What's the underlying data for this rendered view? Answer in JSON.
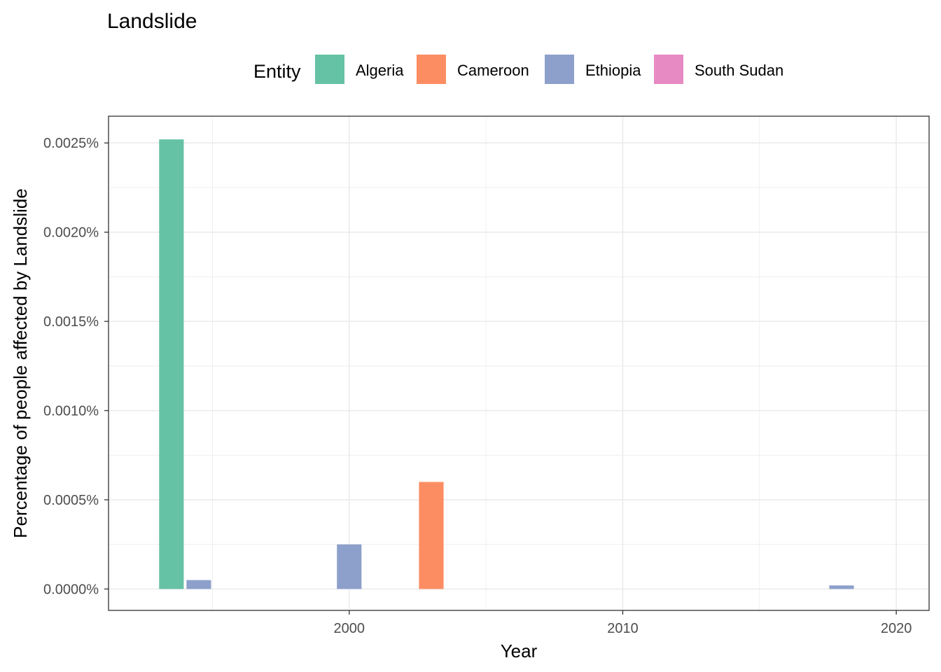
{
  "chart_data": {
    "type": "bar",
    "title": "Landslide",
    "xlabel": "Year",
    "ylabel": "Percentage of people affected by Landslide",
    "legend": {
      "title": "Entity",
      "placement": "top"
    },
    "xlim": [
      1991.2,
      2021.2
    ],
    "ylim": [
      -0.00012,
      0.00265
    ],
    "x_ticks": [
      2000,
      2010,
      2020
    ],
    "x_tick_labels": [
      "2000",
      "2010",
      "2020"
    ],
    "y_ticks": [
      0.0,
      0.0005,
      0.001,
      0.0015,
      0.002,
      0.0025
    ],
    "y_tick_labels": [
      "0.0000%",
      "0.0005%",
      "0.0010%",
      "0.0015%",
      "0.0020%",
      "0.0025%"
    ],
    "grid": true,
    "bar_width_years": 0.9,
    "series": [
      {
        "name": "Algeria",
        "color": "#66c2a5",
        "points": [
          {
            "x": 1993.5,
            "y": 0.00252
          }
        ]
      },
      {
        "name": "Cameroon",
        "color": "#fc8d62",
        "points": [
          {
            "x": 2003.0,
            "y": 0.0006
          }
        ]
      },
      {
        "name": "Ethiopia",
        "color": "#8da0cb",
        "points": [
          {
            "x": 1994.5,
            "y": 5e-05
          },
          {
            "x": 2000.0,
            "y": 0.00025
          },
          {
            "x": 2018.0,
            "y": 2e-05
          }
        ]
      },
      {
        "name": "South Sudan",
        "color": "#e78ac3",
        "points": []
      }
    ]
  }
}
